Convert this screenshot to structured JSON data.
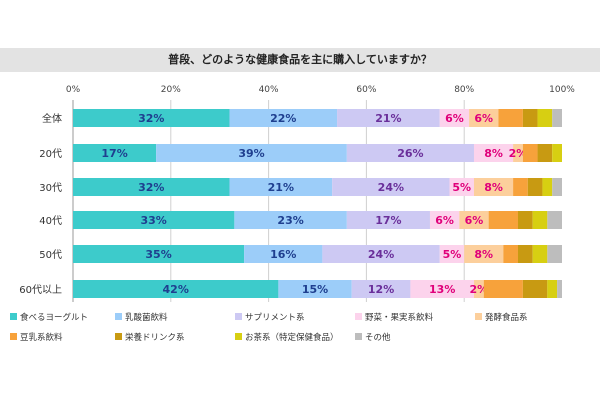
{
  "chart_data": {
    "type": "bar",
    "orientation": "horizontal",
    "stacked": "percent",
    "title": "普段、どのような健康食品を主に購入していますか？",
    "xlim": [
      0,
      100
    ],
    "x_ticks": [
      "0%",
      "20%",
      "40%",
      "60%",
      "80%",
      "100%"
    ],
    "categories": [
      "全体",
      "20代",
      "30代",
      "40代",
      "50代",
      "60代以上"
    ],
    "grid": true,
    "legend_position": "bottom",
    "series": [
      {
        "name": "食べるヨーグルト",
        "color": "#3dcbcb",
        "label_color": "#1f3f8f",
        "values": [
          32,
          17,
          32,
          33,
          35,
          42
        ],
        "labels": [
          "32%",
          "17%",
          "32%",
          "33%",
          "35%",
          "42%"
        ]
      },
      {
        "name": "乳酸菌飲料",
        "color": "#9ccdf9",
        "label_color": "#1f3f8f",
        "values": [
          22,
          39,
          21,
          23,
          16,
          15
        ],
        "labels": [
          "22%",
          "39%",
          "21%",
          "23%",
          "16%",
          "15%"
        ]
      },
      {
        "name": "サプリメント系",
        "color": "#cdc9f3",
        "label_color": "#6a2f9a",
        "values": [
          21,
          26,
          24,
          17,
          24,
          12
        ],
        "labels": [
          "21%",
          "26%",
          "24%",
          "17%",
          "24%",
          "12%"
        ]
      },
      {
        "name": "野菜・果実系飲料",
        "color": "#fcd3ec",
        "label_color": "#e0007a",
        "values": [
          6,
          8,
          5,
          6,
          5,
          13
        ],
        "labels": [
          "6%",
          "8%",
          "5%",
          "6%",
          "5%",
          "13%"
        ]
      },
      {
        "name": "発酵食品系",
        "color": "#fccf9c",
        "label_color": "#e0007a",
        "values": [
          6,
          2,
          8,
          6,
          8,
          2
        ],
        "labels": [
          "6%",
          "2%",
          "8%",
          "6%",
          "8%",
          "2%"
        ]
      },
      {
        "name": "豆乳系飲料",
        "color": "#f7a23b",
        "label_color": "#e0007a",
        "values": [
          5,
          3,
          3,
          6,
          3,
          8
        ],
        "labels": [
          "",
          "",
          "",
          "",
          "",
          ""
        ]
      },
      {
        "name": "栄養ドリンク系",
        "color": "#c89a12",
        "label_color": "#333333",
        "values": [
          3,
          3,
          3,
          3,
          3,
          5
        ],
        "labels": [
          "",
          "",
          "",
          "",
          "",
          ""
        ]
      },
      {
        "name": "お茶系（特定保健食品）",
        "color": "#d7cf12",
        "label_color": "#333333",
        "values": [
          3,
          2,
          2,
          3,
          3,
          2
        ],
        "labels": [
          "",
          "",
          "",
          "",
          "",
          ""
        ]
      },
      {
        "name": "その他",
        "color": "#bdbdbd",
        "label_color": "#333333",
        "values": [
          2,
          0,
          2,
          3,
          3,
          1
        ],
        "labels": [
          "",
          "",
          "",
          "",
          "",
          ""
        ]
      }
    ]
  }
}
